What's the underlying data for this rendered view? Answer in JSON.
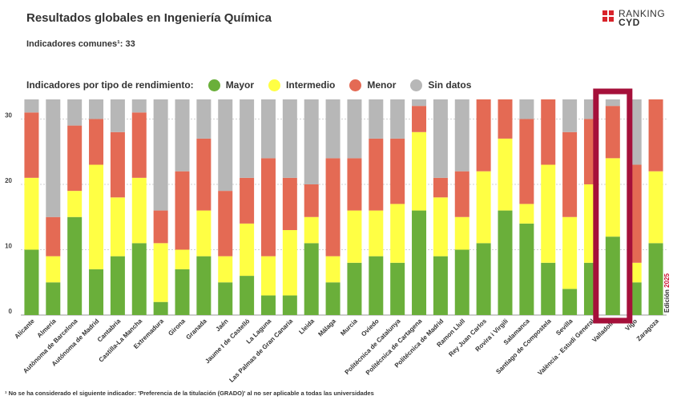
{
  "header": {
    "title": "Resultados globales en Ingeniería Química",
    "subtitle": "Indicadores comunes¹: 33",
    "logo_line1": "RANKING",
    "logo_line2": "CYD"
  },
  "legend": {
    "title": "Indicadores por tipo de rendimiento:",
    "items": [
      {
        "label": "Mayor",
        "color": "#6aaf3a"
      },
      {
        "label": "Intermedio",
        "color": "#ffff44"
      },
      {
        "label": "Menor",
        "color": "#e46a54"
      },
      {
        "label": "Sin datos",
        "color": "#b7b7b7"
      }
    ]
  },
  "edition": {
    "label": "Edición",
    "year": "2025"
  },
  "footnote": "¹ No se ha considerado el siguiente indicador: 'Preferencia de la titulación (GRADO)' al no ser aplicable a todas las universidades",
  "chart_data": {
    "type": "bar",
    "stacked": true,
    "ylim": [
      0,
      33
    ],
    "yticks": [
      0,
      10,
      20,
      30
    ],
    "grid": true,
    "highlight": "Valladolid",
    "categories": [
      "Alicante",
      "Almería",
      "Autònoma de Barcelona",
      "Autónoma de Madrid",
      "Cantabria",
      "Castilla-La Mancha",
      "Extremadura",
      "Girona",
      "Granada",
      "Jaén",
      "Jaume I de Castelló",
      "La Laguna",
      "Las Palmas de Gran Canaria",
      "Lleida",
      "Málaga",
      "Murcia",
      "Oviedo",
      "Politècnica de Catalunya",
      "Politécnica de Cartagena",
      "Politécnica de Madrid",
      "Ramon Llull",
      "Rey Juan Carlos",
      "Rovira i Virgili",
      "Salamanca",
      "Santiago de Compostela",
      "Sevilla",
      "València - Estudi General",
      "Valladolid",
      "Vigo",
      "Zaragoza"
    ],
    "series": [
      {
        "name": "Mayor",
        "color": "#6aaf3a",
        "values": [
          10,
          5,
          15,
          7,
          9,
          11,
          2,
          7,
          9,
          5,
          6,
          3,
          3,
          11,
          5,
          8,
          9,
          8,
          16,
          9,
          10,
          11,
          16,
          14,
          8,
          4,
          8,
          12,
          5,
          11
        ]
      },
      {
        "name": "Intermedio",
        "color": "#ffff44",
        "values": [
          11,
          4,
          4,
          16,
          9,
          10,
          9,
          3,
          7,
          4,
          8,
          6,
          10,
          4,
          4,
          8,
          7,
          9,
          12,
          9,
          5,
          11,
          11,
          3,
          15,
          11,
          12,
          12,
          3,
          11
        ]
      },
      {
        "name": "Menor",
        "color": "#e46a54",
        "values": [
          10,
          6,
          10,
          7,
          10,
          10,
          5,
          12,
          11,
          10,
          7,
          15,
          8,
          5,
          15,
          8,
          11,
          10,
          4,
          3,
          7,
          11,
          6,
          13,
          10,
          13,
          10,
          8,
          15,
          11
        ]
      },
      {
        "name": "Sin datos",
        "color": "#b7b7b7",
        "values": [
          2,
          18,
          4,
          3,
          5,
          2,
          17,
          11,
          6,
          14,
          12,
          9,
          12,
          13,
          9,
          9,
          6,
          6,
          1,
          12,
          11,
          0,
          0,
          3,
          0,
          5,
          3,
          1,
          10,
          0
        ]
      }
    ]
  }
}
